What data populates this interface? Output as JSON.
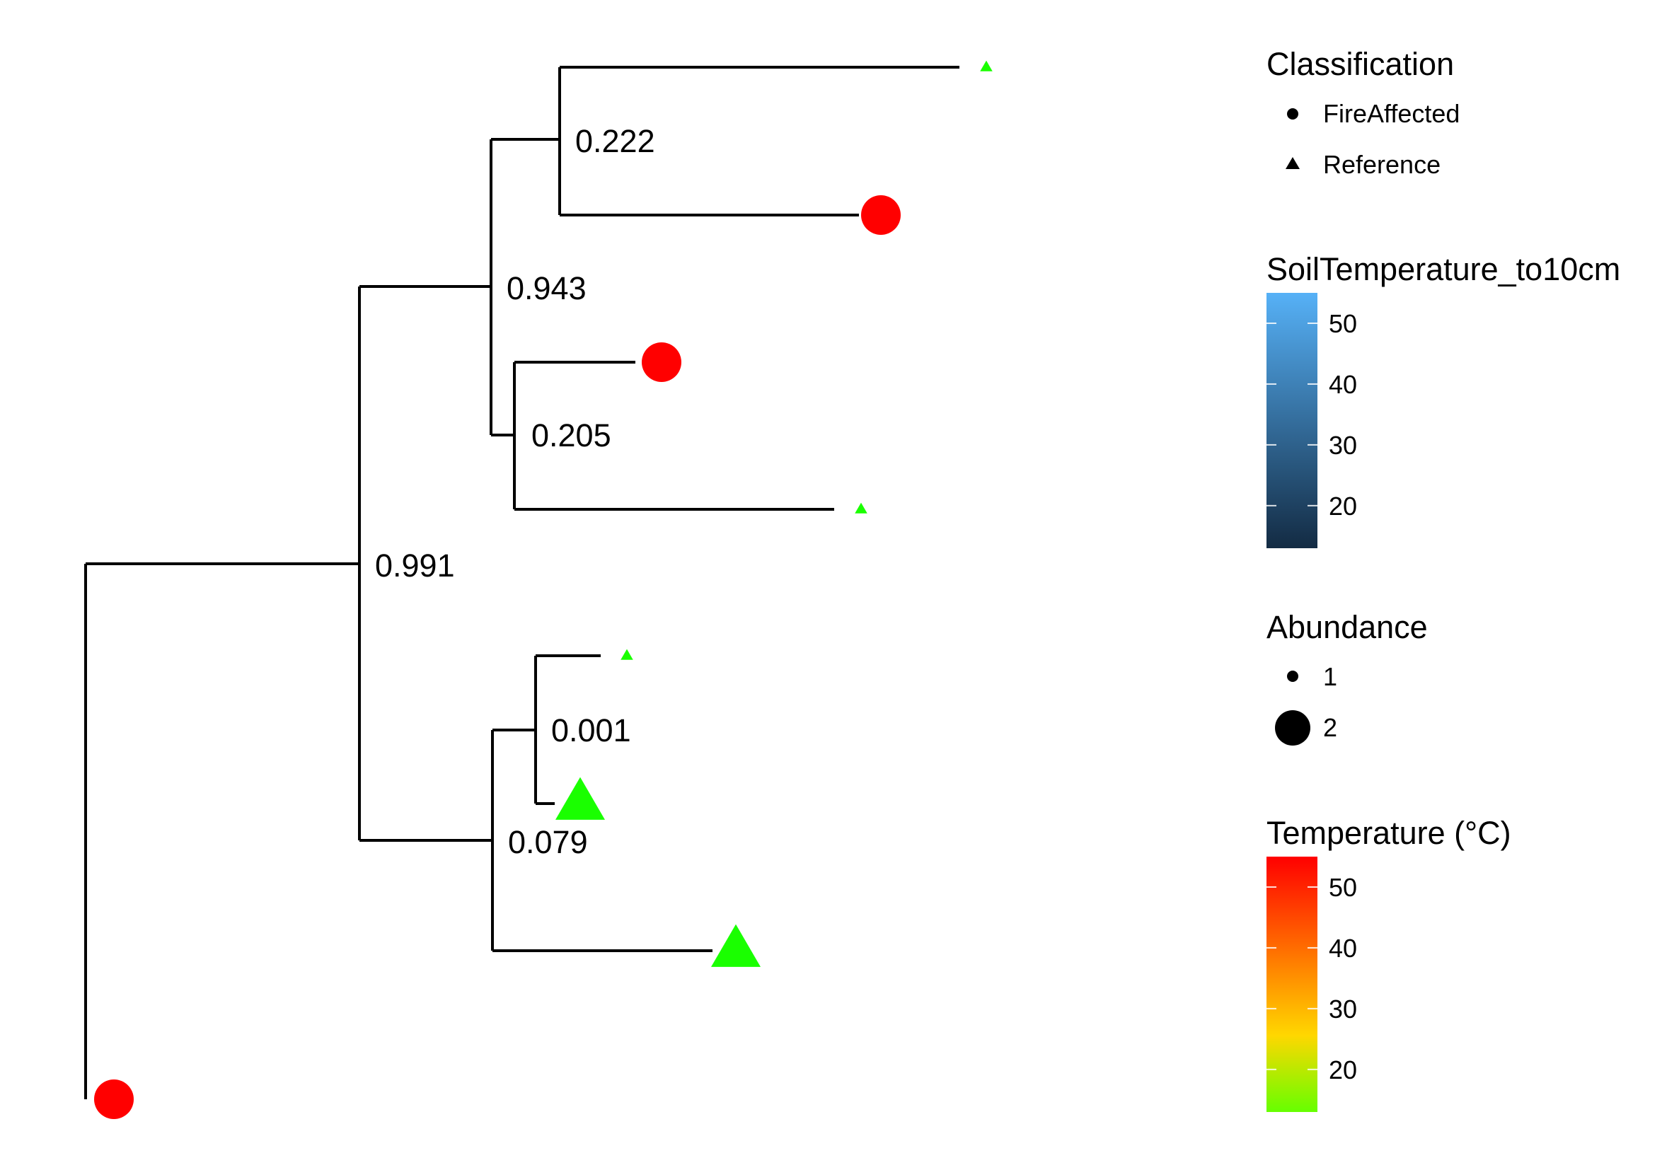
{
  "chart_data": {
    "type": "tree",
    "tree": {
      "name": "root",
      "children": [
        {
          "name": "n1",
          "label": "0.991",
          "children": [
            {
              "name": "n2",
              "label": "0.943",
              "children": [
                {
                  "name": "n3",
                  "label": "0.222",
                  "children": [
                    {
                      "name": "tip1",
                      "classification": "Reference",
                      "abundance": 1,
                      "temperature": 14
                    },
                    {
                      "name": "tip2",
                      "classification": "FireAffected",
                      "abundance": 2,
                      "temperature": 55
                    }
                  ]
                },
                {
                  "name": "n4",
                  "label": "0.205",
                  "children": [
                    {
                      "name": "tip3",
                      "classification": "FireAffected",
                      "abundance": 2,
                      "temperature": 55
                    },
                    {
                      "name": "tip4",
                      "classification": "Reference",
                      "abundance": 1,
                      "temperature": 14
                    }
                  ]
                }
              ]
            },
            {
              "name": "n5",
              "label": "0.079",
              "children": [
                {
                  "name": "n6",
                  "label": "0.001",
                  "children": [
                    {
                      "name": "tip5",
                      "classification": "Reference",
                      "abundance": 1,
                      "temperature": 14
                    },
                    {
                      "name": "tip6",
                      "classification": "Reference",
                      "abundance": 2,
                      "temperature": 14
                    }
                  ]
                },
                {
                  "name": "tip7",
                  "classification": "Reference",
                  "abundance": 2,
                  "temperature": 14
                }
              ]
            }
          ]
        },
        {
          "name": "tip8",
          "classification": "FireAffected",
          "abundance": 2,
          "temperature": 55
        }
      ]
    },
    "node_labels": [
      "0.222",
      "0.943",
      "0.205",
      "0.991",
      "0.001",
      "0.079"
    ],
    "legends": {
      "classification": {
        "title": "Classification",
        "entries": [
          {
            "label": "FireAffected",
            "shape": "circle"
          },
          {
            "label": "Reference",
            "shape": "triangle"
          }
        ]
      },
      "soil_temperature": {
        "title": "SoilTemperature_to10cm",
        "ticks": [
          "50",
          "40",
          "30",
          "20"
        ],
        "tick_values": [
          50,
          40,
          30,
          20
        ],
        "range": [
          13,
          55
        ],
        "colors": [
          "#132b43",
          "#56b1f7"
        ]
      },
      "abundance": {
        "title": "Abundance",
        "entries": [
          {
            "label": "1",
            "value": 1
          },
          {
            "label": "2",
            "value": 2
          }
        ]
      },
      "temperature": {
        "title": "Temperature (°C)",
        "ticks": [
          "50",
          "40",
          "30",
          "20"
        ],
        "tick_values": [
          50,
          40,
          30,
          20
        ],
        "range": [
          13,
          55
        ],
        "colors": [
          "#66ff00",
          "#ffd700",
          "#ff6a00",
          "#ff0000"
        ]
      }
    },
    "colors": {
      "fire_affected": "#ff0000",
      "reference": "#1aff00",
      "branch": "#000000"
    }
  }
}
